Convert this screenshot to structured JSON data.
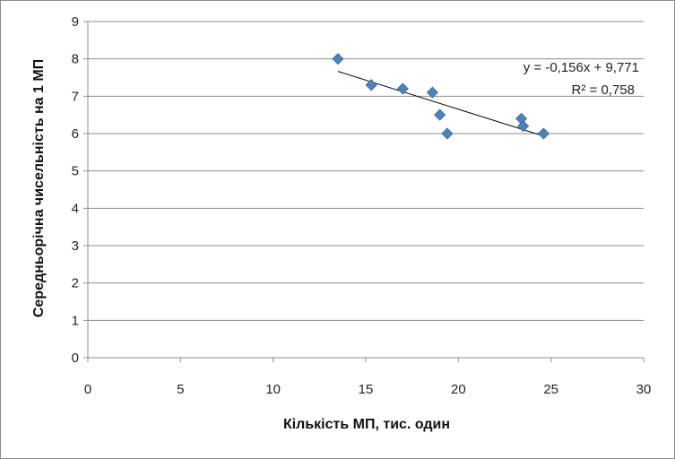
{
  "chart_data": {
    "type": "scatter",
    "xlabel": "Кількість МП, тис. один",
    "ylabel": "Середньорічна чисельність на 1 МП",
    "xlim": [
      0,
      30
    ],
    "ylim": [
      0,
      9
    ],
    "xticks": [
      "0",
      "5",
      "10",
      "15",
      "20",
      "25",
      "30"
    ],
    "yticks": [
      "0",
      "1",
      "2",
      "3",
      "4",
      "5",
      "6",
      "7",
      "8",
      "9"
    ],
    "grid": "horizontal",
    "legend": "none",
    "series": [
      {
        "marker": "diamond",
        "color": "#4f81bd",
        "points": [
          {
            "x": 13.5,
            "y": 8.0
          },
          {
            "x": 15.3,
            "y": 7.3
          },
          {
            "x": 17.0,
            "y": 7.2
          },
          {
            "x": 18.6,
            "y": 7.1
          },
          {
            "x": 19.0,
            "y": 6.5
          },
          {
            "x": 19.4,
            "y": 6.0
          },
          {
            "x": 23.4,
            "y": 6.4
          },
          {
            "x": 23.5,
            "y": 6.2
          },
          {
            "x": 24.6,
            "y": 6.0
          }
        ]
      }
    ],
    "trendline": {
      "type": "linear",
      "slope": -0.156,
      "intercept": 9.771,
      "x_range": [
        13.5,
        24.6
      ],
      "color": "#000000"
    },
    "annotations": {
      "equation": "y = -0,156x + 9,771",
      "r_squared": "R² = 0,758"
    }
  }
}
